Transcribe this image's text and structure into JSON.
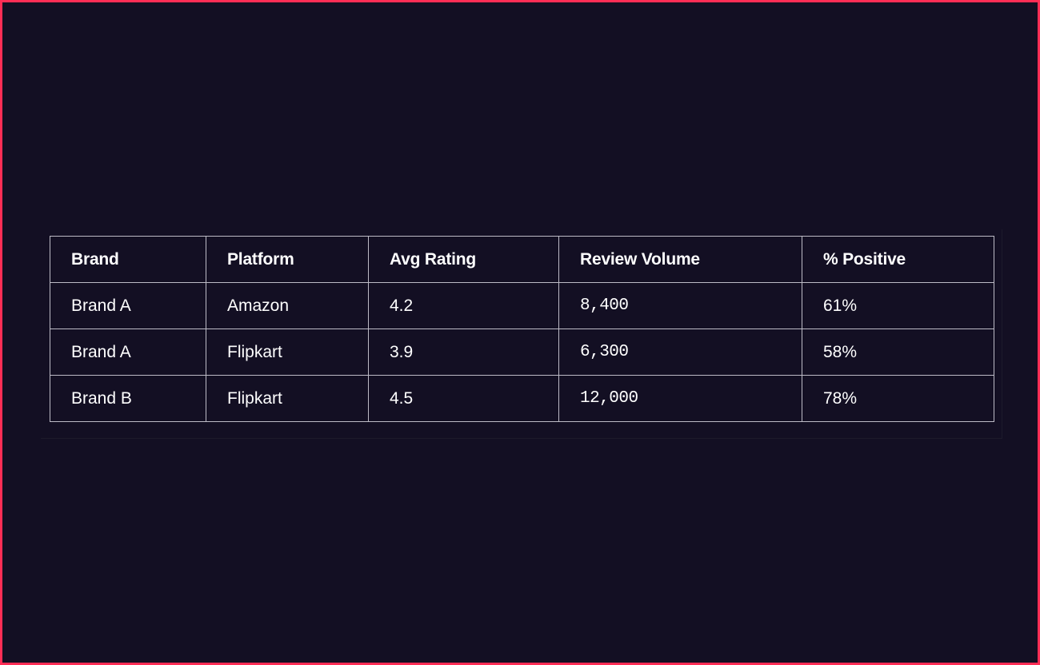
{
  "table": {
    "headers": [
      "Brand",
      "Platform",
      "Avg Rating",
      "Review Volume",
      "% Positive"
    ],
    "rows": [
      [
        "Brand A",
        "Amazon",
        "4.2",
        "8,400",
        "61%"
      ],
      [
        "Brand A",
        "Flipkart",
        "3.9",
        "6,300",
        "58%"
      ],
      [
        "Brand B",
        "Flipkart",
        "4.5",
        "12,000",
        "78%"
      ]
    ]
  },
  "colors": {
    "background": "#130f23",
    "frame_border": "#ff2d55",
    "grid_lines": "#bdbbc6",
    "text": "#ffffff"
  }
}
